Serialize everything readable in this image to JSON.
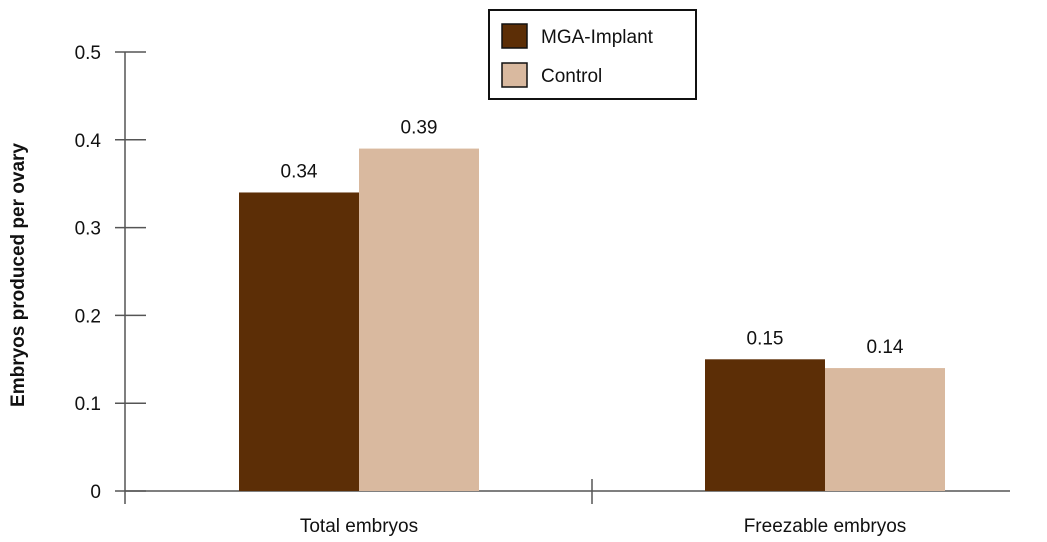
{
  "chart_data": {
    "type": "bar",
    "categories": [
      "Total embryos",
      "Freezable embryos"
    ],
    "series": [
      {
        "name": "MGA-Implant",
        "values": [
          0.34,
          0.15
        ],
        "color": "#5c2e06"
      },
      {
        "name": "Control",
        "values": [
          0.39,
          0.14
        ],
        "color": "#d9b99f"
      }
    ],
    "data_labels": [
      [
        "0.34",
        "0.15"
      ],
      [
        "0.39",
        "0.14"
      ]
    ],
    "ylabel": "Embryos produced per ovary",
    "xlabel": "",
    "ylim": [
      0,
      0.5
    ],
    "yticks": [
      0,
      0.1,
      0.2,
      0.3,
      0.4,
      0.5
    ],
    "ytick_labels": [
      "0",
      "0.1",
      "0.2",
      "0.3",
      "0.4",
      "0.5"
    ],
    "grid": false,
    "legend_position": "top-center"
  }
}
